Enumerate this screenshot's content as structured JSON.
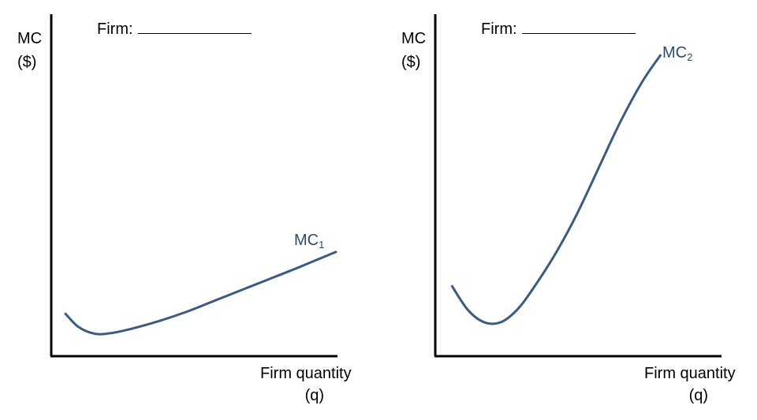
{
  "charts": [
    {
      "firm_label": "Firm:",
      "ylabel_line1": "MC",
      "ylabel_line2": "($)",
      "xlabel_line1": "Firm quantity",
      "xlabel_line2": "(q)",
      "curve_label": "MC",
      "curve_label_sub": "1"
    },
    {
      "firm_label": "Firm:",
      "ylabel_line1": "MC",
      "ylabel_line2": "($)",
      "xlabel_line1": "Firm quantity",
      "xlabel_line2": "(q)",
      "curve_label": "MC",
      "curve_label_sub": "2"
    }
  ],
  "chart_data": [
    {
      "type": "line",
      "title": "",
      "xlabel": "Firm quantity (q)",
      "ylabel": "MC ($)",
      "xlim": [
        0,
        10
      ],
      "ylim": [
        0,
        10
      ],
      "grid": false,
      "series": [
        {
          "name": "MC1",
          "x": [
            0.5,
            1.0,
            1.6,
            2.2,
            3.0,
            4.0,
            5.0,
            6.0,
            7.0,
            8.0,
            9.0,
            10.5
          ],
          "y": [
            1.4,
            0.95,
            0.73,
            0.75,
            0.9,
            1.15,
            1.45,
            1.8,
            2.15,
            2.5,
            2.85,
            3.4
          ]
        }
      ],
      "line_color": "#3d5a80"
    },
    {
      "type": "line",
      "title": "",
      "xlabel": "Firm quantity (q)",
      "ylabel": "MC ($)",
      "xlim": [
        0,
        10
      ],
      "ylim": [
        0,
        10
      ],
      "grid": false,
      "series": [
        {
          "name": "MC2",
          "x": [
            0.6,
            1.2,
            1.8,
            2.4,
            3.0,
            3.6,
            4.4,
            5.2,
            6.0,
            6.8,
            7.6,
            8.3
          ],
          "y": [
            2.3,
            1.5,
            1.1,
            1.1,
            1.5,
            2.2,
            3.3,
            4.6,
            6.1,
            7.6,
            8.9,
            9.8
          ]
        }
      ],
      "line_color": "#3d5a80"
    }
  ]
}
